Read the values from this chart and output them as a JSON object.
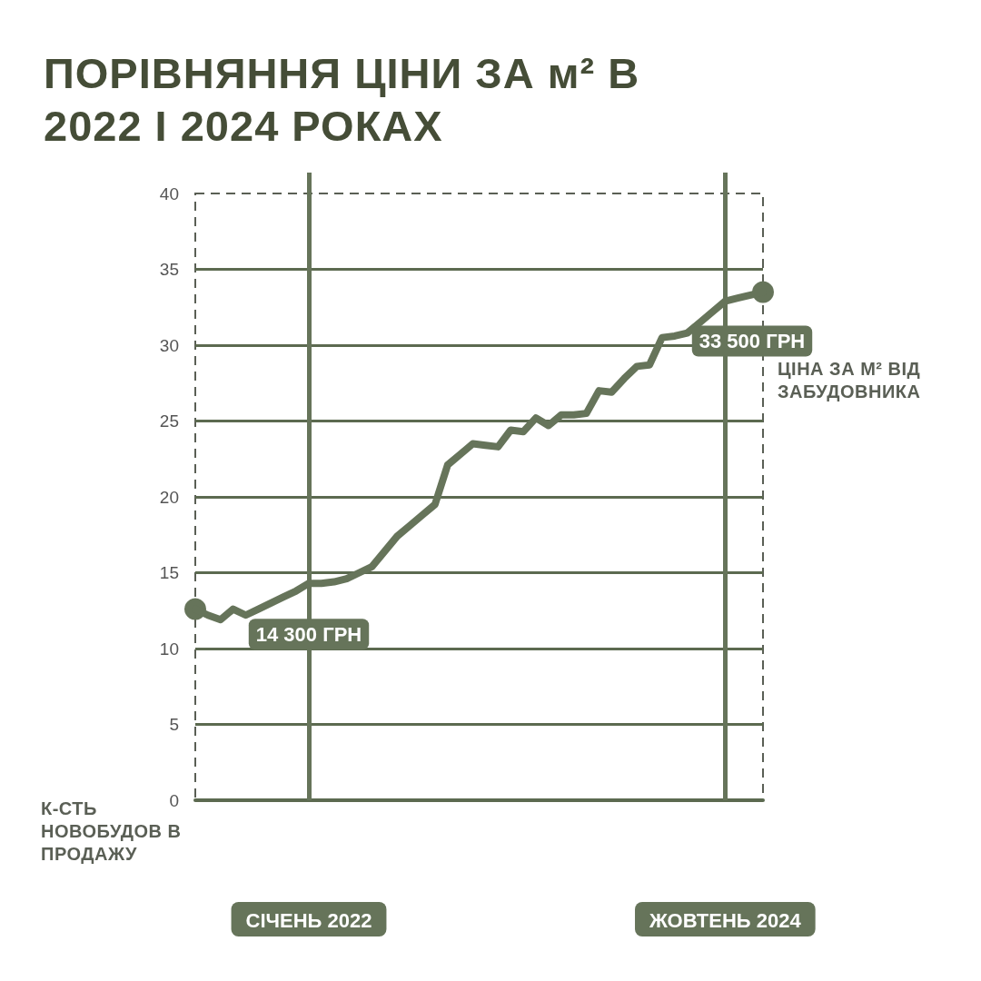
{
  "chart_data": {
    "type": "line",
    "title": "ПОРІВНЯННЯ ЦІНИ ЗА м² В 2022 І 2024 РОКАХ",
    "categories": [
      null,
      null,
      null,
      null,
      null,
      null,
      null,
      null,
      null,
      "СІЧЕНЬ 2022",
      null,
      null,
      null,
      null,
      null,
      null,
      null,
      null,
      null,
      null,
      null,
      null,
      null,
      null,
      null,
      null,
      null,
      null,
      null,
      null,
      null,
      null,
      null,
      null,
      null,
      null,
      null,
      null,
      null,
      null,
      null,
      null,
      "ЖОВТЕНЬ 2024",
      null,
      null,
      null
    ],
    "series": [
      {
        "name": "ЦІНА ЗА М² ВІД ЗАБУДОВНИКА",
        "color": "#66745a",
        "values": [
          12.6,
          12.2,
          11.9,
          12.6,
          12.2,
          12.6,
          13.0,
          13.4,
          13.8,
          14.3,
          14.3,
          14.4,
          14.6,
          15.0,
          15.4,
          16.4,
          17.4,
          18.1,
          18.8,
          19.5,
          22.1,
          22.8,
          23.5,
          23.4,
          23.3,
          24.4,
          24.3,
          25.2,
          24.7,
          25.4,
          25.4,
          25.5,
          27.0,
          26.9,
          27.8,
          28.6,
          28.7,
          30.5,
          30.6,
          30.8,
          31.5,
          32.2,
          32.9,
          33.1,
          33.3,
          33.5
        ]
      }
    ],
    "ylim": [
      0,
      40
    ],
    "yticks": [
      0,
      5,
      10,
      15,
      20,
      25,
      30,
      35,
      40
    ],
    "grid": true,
    "marker": "none",
    "line_style": "solid",
    "legend": false,
    "annotations": [
      {
        "text": "14 300 ГРН",
        "x": "СІЧЕНЬ 2022",
        "y": 14.3
      },
      "33 500 ГРН",
      "К-СТЬ НОВОБУДОВ В ПРОДАЖУ"
    ]
  }
}
